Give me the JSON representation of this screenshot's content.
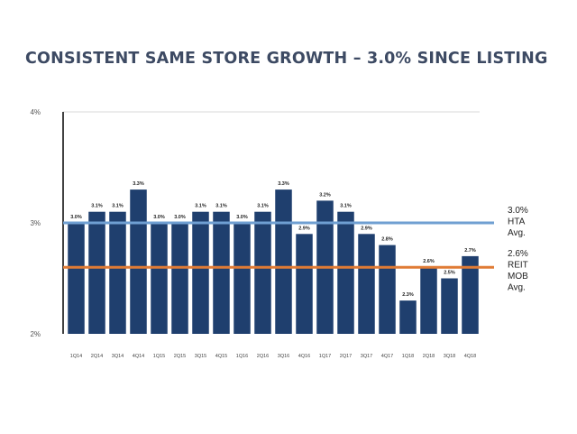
{
  "title": "CONSISTENT SAME STORE GROWTH – 3.0% SINCE LISTING",
  "chart_data": {
    "type": "bar",
    "categories": [
      "1Q14",
      "2Q14",
      "3Q14",
      "4Q14",
      "1Q15",
      "2Q15",
      "3Q15",
      "4Q15",
      "1Q16",
      "2Q16",
      "3Q16",
      "4Q16",
      "1Q17",
      "2Q17",
      "3Q17",
      "4Q17",
      "1Q18",
      "2Q18",
      "3Q18",
      "4Q18"
    ],
    "values": [
      3.0,
      3.1,
      3.1,
      3.3,
      3.0,
      3.0,
      3.1,
      3.1,
      3.0,
      3.1,
      3.3,
      2.9,
      3.2,
      3.1,
      2.9,
      2.8,
      2.3,
      2.6,
      2.5,
      2.7
    ],
    "value_labels": [
      "3.0%",
      "3.1%",
      "3.1%",
      "3.3%",
      "3.0%",
      "3.0%",
      "3.1%",
      "3.1%",
      "3.0%",
      "3.1%",
      "3.3%",
      "2.9%",
      "3.2%",
      "3.1%",
      "2.9%",
      "2.8%",
      "2.3%",
      "2.6%",
      "2.5%",
      "2.7%"
    ],
    "ylim": [
      2,
      4
    ],
    "yticks": [
      2,
      3,
      4
    ],
    "ytick_labels": [
      "2%",
      "3%",
      "4%"
    ],
    "bar_color": "#1f3f6e",
    "reference_lines": [
      {
        "value": 3.0,
        "label_lines": [
          "3.0%",
          "HTA",
          "Avg."
        ],
        "color": "#6f9fd2"
      },
      {
        "value": 2.6,
        "label_lines": [
          "2.6%",
          "REIT",
          "MOB",
          "Avg."
        ],
        "color": "#e07b35"
      }
    ],
    "grid": false,
    "xlabel": "",
    "ylabel": ""
  }
}
